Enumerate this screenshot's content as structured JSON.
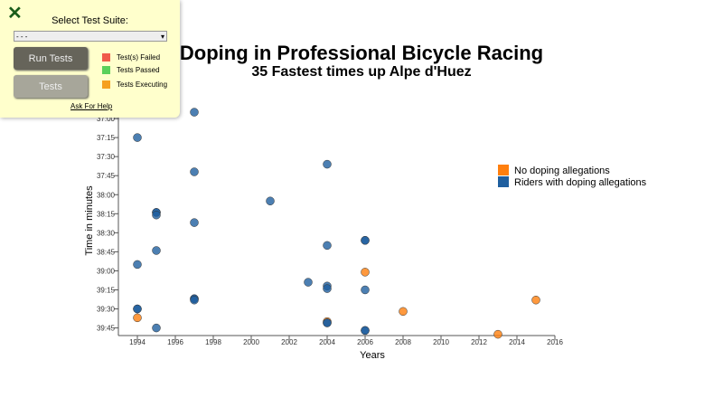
{
  "panel": {
    "close_icon": "x-icon",
    "label": "Select Test Suite:",
    "select_value": "- - -",
    "run_label": "Run Tests",
    "tests_label": "Tests",
    "keys": [
      {
        "label": "Test(s) Failed",
        "color": "#f05a4a"
      },
      {
        "label": "Tests Passed",
        "color": "#5ad05a"
      },
      {
        "label": "Tests Executing",
        "color": "#f5a020"
      }
    ],
    "help_label": "Ask For Help"
  },
  "chart_data": {
    "type": "scatter",
    "title": "Doping in Professional Bicycle Racing",
    "subtitle": "35 Fastest times up Alpe d'Huez",
    "xlabel": "Years",
    "ylabel": "Time in minutes",
    "xlim": [
      1993,
      2016
    ],
    "ylim": [
      "36:40",
      "39:51"
    ],
    "y_reversed": true,
    "x_ticks": [
      "1994",
      "1996",
      "1998",
      "2000",
      "2002",
      "2004",
      "2006",
      "2008",
      "2010",
      "2012",
      "2014",
      "2016"
    ],
    "y_ticks": [
      "37:00",
      "37:15",
      "37:30",
      "37:45",
      "38:00",
      "38:15",
      "38:30",
      "38:45",
      "39:00",
      "39:15",
      "39:30",
      "39:45"
    ],
    "legend": [
      {
        "label": "No doping allegations",
        "color": "#ff7f0e"
      },
      {
        "label": "Riders with doping allegations",
        "color": "#1f5f9f"
      }
    ],
    "legend_position": "right",
    "points": [
      {
        "x": 1995,
        "y": "36:50",
        "doping": true
      },
      {
        "x": 1997,
        "y": "36:55",
        "doping": true
      },
      {
        "x": 1994,
        "y": "37:15",
        "doping": true
      },
      {
        "x": 2004,
        "y": "37:36",
        "doping": true
      },
      {
        "x": 1997,
        "y": "37:42",
        "doping": true
      },
      {
        "x": 2001,
        "y": "38:05",
        "doping": true
      },
      {
        "x": 1995,
        "y": "38:14",
        "doping": true
      },
      {
        "x": 1995,
        "y": "38:14",
        "doping": true
      },
      {
        "x": 1995,
        "y": "38:16",
        "doping": true
      },
      {
        "x": 1997,
        "y": "38:22",
        "doping": true
      },
      {
        "x": 2006,
        "y": "38:36",
        "doping": true
      },
      {
        "x": 2006,
        "y": "38:36",
        "doping": true
      },
      {
        "x": 2004,
        "y": "38:40",
        "doping": true
      },
      {
        "x": 1995,
        "y": "38:44",
        "doping": true
      },
      {
        "x": 1994,
        "y": "38:55",
        "doping": true
      },
      {
        "x": 2006,
        "y": "39:01",
        "doping": false
      },
      {
        "x": 2003,
        "y": "39:09",
        "doping": true
      },
      {
        "x": 2004,
        "y": "39:12",
        "doping": true
      },
      {
        "x": 2004,
        "y": "39:14",
        "doping": true
      },
      {
        "x": 2006,
        "y": "39:15",
        "doping": true
      },
      {
        "x": 1997,
        "y": "39:22",
        "doping": true
      },
      {
        "x": 1997,
        "y": "39:22",
        "doping": true
      },
      {
        "x": 1997,
        "y": "39:23",
        "doping": true
      },
      {
        "x": 2015,
        "y": "39:23",
        "doping": false
      },
      {
        "x": 1994,
        "y": "39:30",
        "doping": true
      },
      {
        "x": 1994,
        "y": "39:30",
        "doping": true
      },
      {
        "x": 2008,
        "y": "39:32",
        "doping": false
      },
      {
        "x": 1994,
        "y": "39:37",
        "doping": false
      },
      {
        "x": 2004,
        "y": "39:40",
        "doping": false
      },
      {
        "x": 2004,
        "y": "39:41",
        "doping": true
      },
      {
        "x": 2004,
        "y": "39:41",
        "doping": true
      },
      {
        "x": 1995,
        "y": "39:45",
        "doping": true
      },
      {
        "x": 2006,
        "y": "39:47",
        "doping": true
      },
      {
        "x": 2006,
        "y": "39:47",
        "doping": true
      },
      {
        "x": 2013,
        "y": "39:50",
        "doping": false
      }
    ]
  }
}
